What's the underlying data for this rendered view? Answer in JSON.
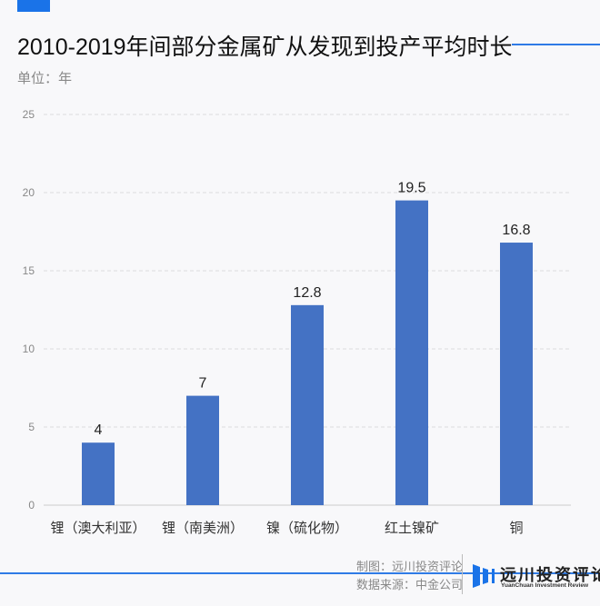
{
  "header": {
    "title": "2010-2019年间部分金属矿从发现到投产平均时长",
    "unit": "单位：年"
  },
  "chart_data": {
    "type": "bar",
    "title": "2010-2019年间部分金属矿从发现到投产平均时长",
    "ylabel": "单位：年",
    "categories": [
      "锂（澳大利亚）",
      "锂（南美洲）",
      "镍（硫化物）",
      "红土镍矿",
      "铜"
    ],
    "values": [
      4,
      7,
      12.8,
      19.5,
      16.8
    ],
    "value_labels": [
      "4",
      "7",
      "12.8",
      "19.5",
      "16.8"
    ],
    "ylim": [
      0,
      25
    ],
    "yticks": [
      "0",
      "5",
      "10",
      "15",
      "20",
      "25"
    ],
    "grid": true,
    "bar_color": "#4472c4"
  },
  "footer": {
    "made_by": "制图：远川投资评论",
    "source": "数据来源：中金公司",
    "logo_name": "远川投资评论",
    "logo_sub": "YuanChuan Investment Review",
    "accent_color": "#1a73e8"
  }
}
